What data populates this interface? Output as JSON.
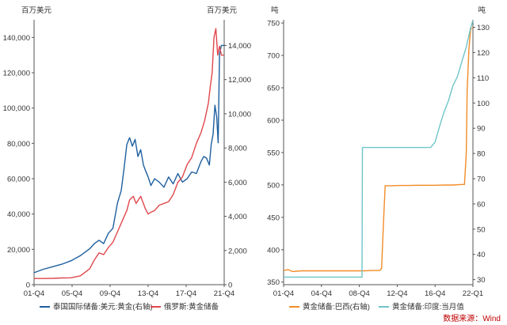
{
  "chart_data": [
    {
      "type": "line",
      "y_left_label": "百万美元",
      "y_right_label": "百万美元",
      "y_left_lim": [
        0,
        150000
      ],
      "y_left_ticks": [
        "0",
        "20,000",
        "40,000",
        "60,000",
        "80,000",
        "100,000",
        "120,000",
        "140,000"
      ],
      "y_right_lim": [
        0,
        15500
      ],
      "y_right_ticks": [
        "0",
        "2,000",
        "4,000",
        "6,000",
        "8,000",
        "10,000",
        "12,000",
        "14,000"
      ],
      "x_lim": [
        2001,
        2021.5
      ],
      "x_tick_labels": [
        "01-Q4",
        "05-Q4",
        "09-Q4",
        "13-Q4",
        "17-Q4",
        "21-Q4"
      ],
      "legend": [
        "泰国国际储备:美元:黄金(右轴)",
        "俄罗斯:黄金储备"
      ],
      "series": [
        {
          "name": "泰国国际储备:美元:黄金(右轴)",
          "axis": "right",
          "color": "#1f5f9f",
          "x": [
            2001.0,
            2002.0,
            2003.0,
            2004.0,
            2005.0,
            2006.0,
            2007.0,
            2007.5,
            2008.0,
            2008.5,
            2009.0,
            2009.5,
            2010.0,
            2010.4,
            2010.7,
            2011.0,
            2011.3,
            2011.6,
            2011.9,
            2012.2,
            2012.5,
            2012.8,
            2013.0,
            2013.3,
            2013.6,
            2014.0,
            2014.5,
            2015.0,
            2015.5,
            2016.0,
            2016.5,
            2017.0,
            2017.5,
            2018.0,
            2018.5,
            2019.0,
            2019.3,
            2019.6,
            2019.9,
            2020.1,
            2020.3,
            2020.5,
            2020.7,
            2020.85,
            2021.0,
            2021.2,
            2021.5
          ],
          "values": [
            700,
            900,
            1050,
            1200,
            1400,
            1700,
            2100,
            2400,
            2600,
            2400,
            3000,
            3300,
            4800,
            5500,
            6800,
            8200,
            8600,
            8100,
            8500,
            7500,
            7900,
            7000,
            6700,
            6300,
            5800,
            6200,
            6000,
            5700,
            6300,
            5900,
            6500,
            6000,
            6200,
            6600,
            6500,
            7200,
            7500,
            7400,
            7000,
            8200,
            8800,
            10500,
            9800,
            8300,
            13500,
            14000,
            14000
          ]
        },
        {
          "name": "俄罗斯:黄金储备",
          "axis": "left",
          "color": "#e0474c",
          "x": [
            2001.0,
            2002.0,
            2003.0,
            2004.0,
            2005.0,
            2006.0,
            2007.0,
            2007.5,
            2008.0,
            2008.5,
            2009.0,
            2009.5,
            2010.0,
            2010.5,
            2011.0,
            2011.3,
            2011.7,
            2012.0,
            2012.5,
            2013.0,
            2013.3,
            2013.6,
            2014.0,
            2014.5,
            2015.0,
            2015.5,
            2016.0,
            2016.5,
            2017.0,
            2017.5,
            2018.0,
            2018.5,
            2019.0,
            2019.4,
            2019.8,
            2020.0,
            2020.2,
            2020.4,
            2020.6,
            2020.8,
            2021.0,
            2021.2,
            2021.5
          ],
          "values": [
            3500,
            3500,
            3600,
            3800,
            3900,
            5000,
            9000,
            14000,
            18000,
            17000,
            21000,
            24000,
            30000,
            36000,
            42000,
            48000,
            50000,
            46000,
            50000,
            43000,
            40000,
            41000,
            42000,
            45000,
            46000,
            47000,
            51000,
            58000,
            61000,
            68000,
            72000,
            80000,
            86000,
            93000,
            103000,
            112000,
            120000,
            140000,
            145000,
            130000,
            135000,
            130000,
            130000
          ]
        }
      ]
    },
    {
      "type": "line",
      "y_left_label": "吨",
      "y_right_label": "吨",
      "y_left_lim": [
        346,
        755
      ],
      "y_left_ticks": [
        "350",
        "400",
        "450",
        "500",
        "550",
        "600",
        "650",
        "700",
        "750"
      ],
      "y_right_lim": [
        28,
        133
      ],
      "y_right_ticks": [
        "30",
        "40",
        "50",
        "60",
        "70",
        "80",
        "90",
        "100",
        "110",
        "120",
        "130"
      ],
      "x_lim": [
        2001,
        2022.25
      ],
      "x_tick_labels": [
        "01-Q4",
        "04-Q4",
        "08-Q4",
        "12-Q4",
        "16-Q4",
        "22-Q1"
      ],
      "legend": [
        "黄金储备:巴西(右轴)",
        "黄金储备:印度:当月值"
      ],
      "series": [
        {
          "name": "黄金储备:巴西(右轴)",
          "axis": "right",
          "color": "#f28c28",
          "x": [
            2001.0,
            2001.5,
            2002.0,
            2003.0,
            2004.0,
            2005.0,
            2006.0,
            2007.0,
            2008.0,
            2009.0,
            2010.0,
            2011.0,
            2011.8,
            2012.0,
            2012.2,
            2012.4,
            2013.0,
            2014.0,
            2015.0,
            2016.0,
            2017.0,
            2018.0,
            2019.0,
            2020.0,
            2021.0,
            2021.3,
            2021.5,
            2021.6,
            2021.8,
            2022.0,
            2022.25
          ],
          "values": [
            33.6,
            34.0,
            33.2,
            33.5,
            33.5,
            33.5,
            33.5,
            33.5,
            33.5,
            33.5,
            33.5,
            33.6,
            33.6,
            34.5,
            52.0,
            67.2,
            67.2,
            67.3,
            67.3,
            67.4,
            67.4,
            67.4,
            67.5,
            67.5,
            67.7,
            67.7,
            80.0,
            105.0,
            121.1,
            129.6,
            129.6
          ]
        },
        {
          "name": "黄金储备:印度:当月值",
          "axis": "left",
          "color": "#6fc4c8",
          "x": [
            2001.0,
            2002.0,
            2003.0,
            2004.0,
            2005.0,
            2006.0,
            2007.0,
            2008.0,
            2009.0,
            2009.8,
            2009.85,
            2010.0,
            2011.0,
            2012.0,
            2013.0,
            2014.0,
            2015.0,
            2016.0,
            2017.0,
            2017.5,
            2018.0,
            2018.5,
            2019.0,
            2019.5,
            2020.0,
            2020.5,
            2021.0,
            2021.5,
            2022.0,
            2022.25
          ],
          "values": [
            357.7,
            357.7,
            357.7,
            357.7,
            357.7,
            357.7,
            357.7,
            357.7,
            357.7,
            357.7,
            557.7,
            557.7,
            557.7,
            557.7,
            557.7,
            557.7,
            557.7,
            557.7,
            557.7,
            558,
            566,
            590,
            612,
            630,
            653,
            667,
            690,
            713,
            743,
            754
          ]
        }
      ]
    }
  ],
  "source": "数据来源：Wind"
}
